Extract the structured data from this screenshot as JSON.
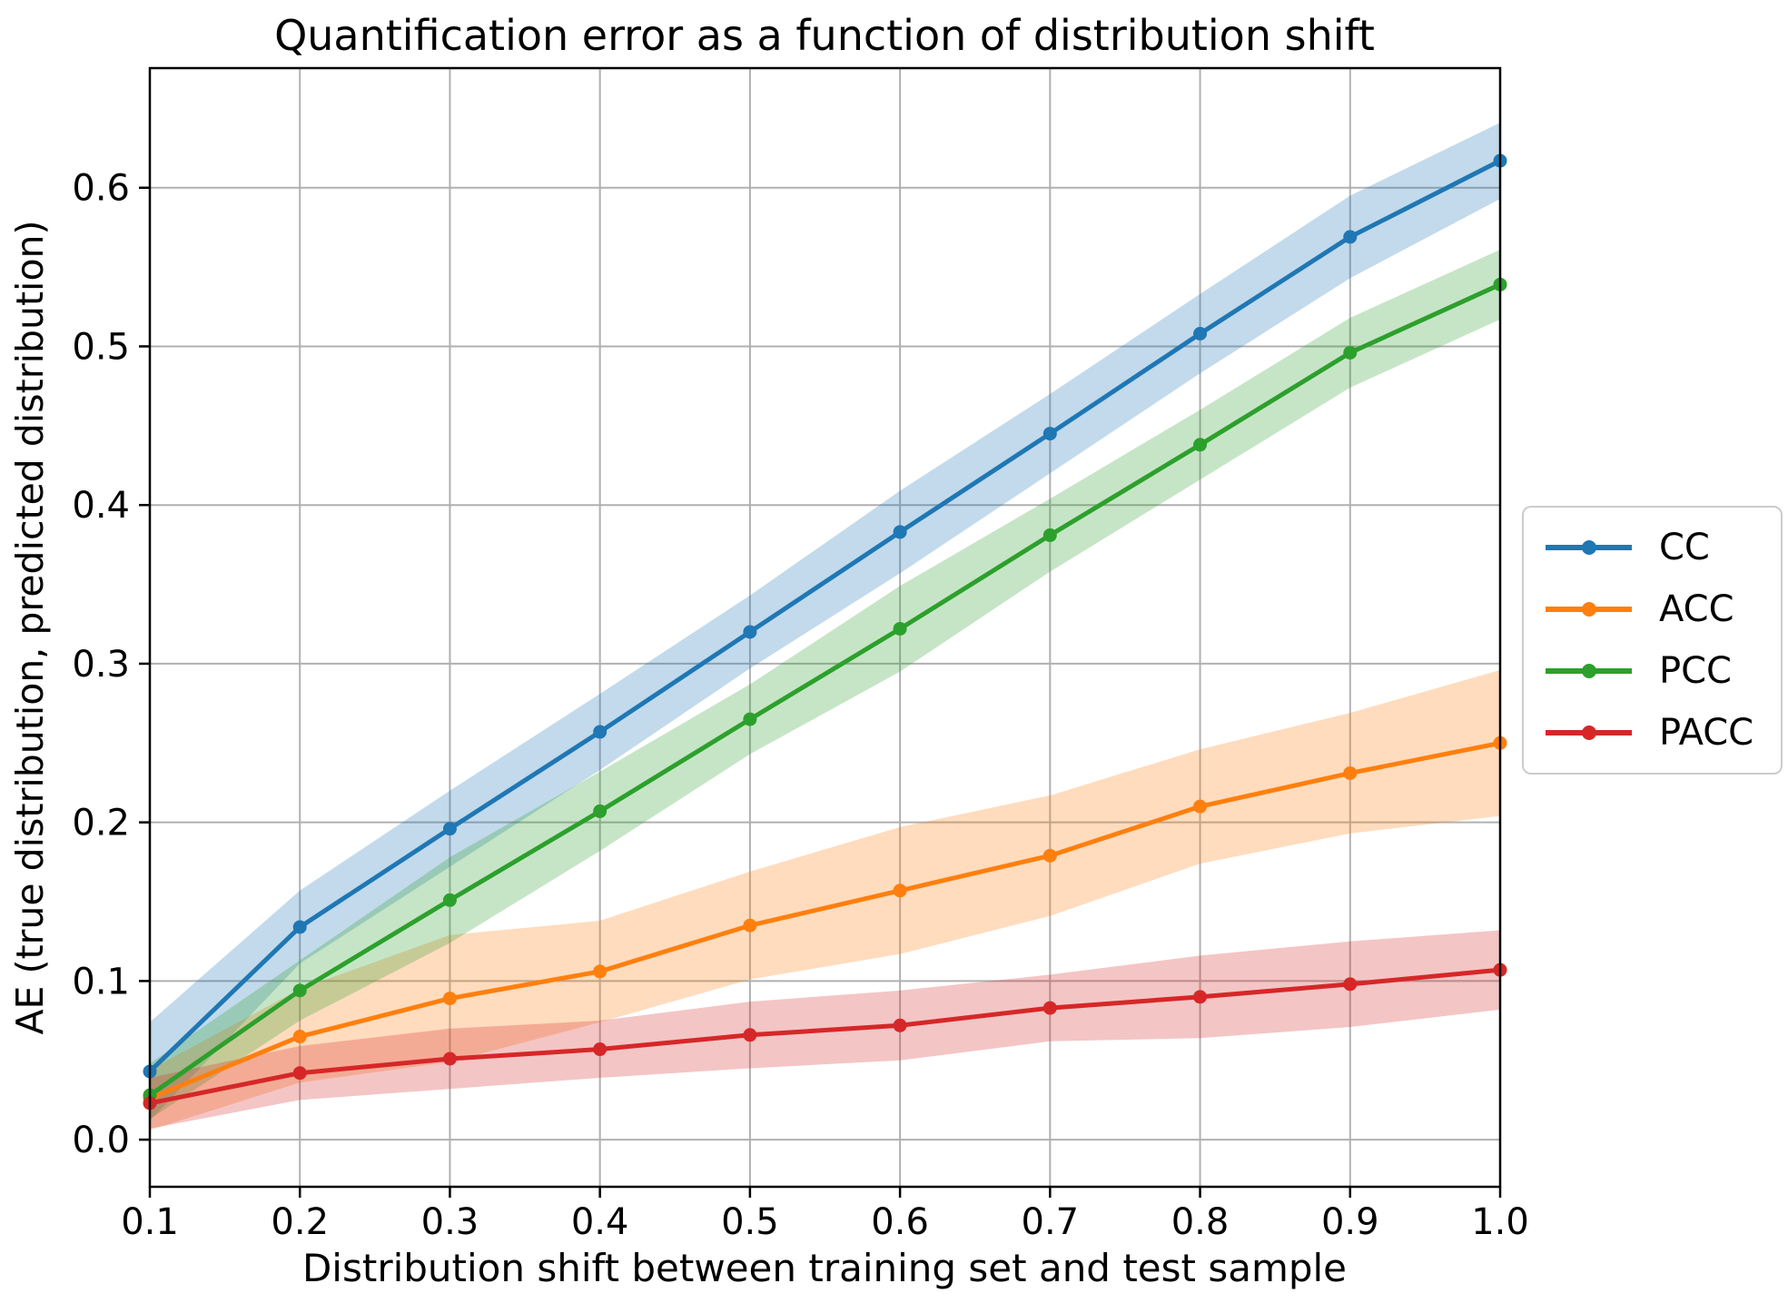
{
  "chart_data": {
    "type": "line",
    "title": "Quantification error as a function of distribution shift",
    "xlabel": "Distribution shift between training set and test sample",
    "ylabel": "AE (true distribution, predicted distribution)",
    "x": [
      0.1,
      0.2,
      0.3,
      0.4,
      0.5,
      0.6,
      0.7,
      0.8,
      0.9,
      1.0
    ],
    "x_ticks": [
      0.1,
      0.2,
      0.3,
      0.4,
      0.5,
      0.6,
      0.7,
      0.8,
      0.9,
      1.0
    ],
    "x_tick_labels": [
      "0.1",
      "0.2",
      "0.3",
      "0.4",
      "0.5",
      "0.6",
      "0.7",
      "0.8",
      "0.9",
      "1.0"
    ],
    "y_ticks": [
      0.0,
      0.1,
      0.2,
      0.3,
      0.4,
      0.5,
      0.6
    ],
    "y_tick_labels": [
      "0.0",
      "0.1",
      "0.2",
      "0.3",
      "0.4",
      "0.5",
      "0.6"
    ],
    "xlim": [
      0.1,
      1.0
    ],
    "ylim": [
      -0.0297,
      0.6754
    ],
    "grid": true,
    "legend_position": "outside-right",
    "grid_color": "#b0b0b0",
    "axis_color": "#000000",
    "background": "#ffffff",
    "band_opacity": 0.27,
    "series": [
      {
        "name": "CC",
        "color": "#1f77b4",
        "values": [
          0.043,
          0.134,
          0.196,
          0.257,
          0.32,
          0.383,
          0.445,
          0.508,
          0.569,
          0.617
        ],
        "band_lower": [
          0.012,
          0.111,
          0.172,
          0.233,
          0.297,
          0.357,
          0.42,
          0.483,
          0.543,
          0.593
        ],
        "band_upper": [
          0.074,
          0.157,
          0.22,
          0.281,
          0.343,
          0.409,
          0.47,
          0.533,
          0.595,
          0.641
        ]
      },
      {
        "name": "ACC",
        "color": "#ff7f0e",
        "values": [
          0.026,
          0.065,
          0.089,
          0.106,
          0.135,
          0.157,
          0.179,
          0.21,
          0.231,
          0.25
        ],
        "band_lower": [
          0.006,
          0.036,
          0.049,
          0.074,
          0.101,
          0.117,
          0.141,
          0.174,
          0.193,
          0.204
        ],
        "band_upper": [
          0.044,
          0.095,
          0.129,
          0.138,
          0.169,
          0.197,
          0.217,
          0.246,
          0.269,
          0.296
        ]
      },
      {
        "name": "PCC",
        "color": "#2ca02c",
        "values": [
          0.028,
          0.094,
          0.151,
          0.207,
          0.265,
          0.322,
          0.381,
          0.438,
          0.496,
          0.539
        ],
        "band_lower": [
          0.013,
          0.075,
          0.124,
          0.182,
          0.243,
          0.295,
          0.358,
          0.416,
          0.474,
          0.517
        ],
        "band_upper": [
          0.048,
          0.113,
          0.178,
          0.232,
          0.287,
          0.349,
          0.404,
          0.46,
          0.518,
          0.561
        ]
      },
      {
        "name": "PACC",
        "color": "#d62728",
        "values": [
          0.023,
          0.042,
          0.051,
          0.057,
          0.066,
          0.072,
          0.083,
          0.09,
          0.098,
          0.107
        ],
        "band_lower": [
          0.007,
          0.025,
          0.032,
          0.039,
          0.045,
          0.05,
          0.062,
          0.064,
          0.071,
          0.082
        ],
        "band_upper": [
          0.039,
          0.059,
          0.07,
          0.075,
          0.087,
          0.094,
          0.104,
          0.116,
          0.125,
          0.132
        ]
      }
    ]
  }
}
